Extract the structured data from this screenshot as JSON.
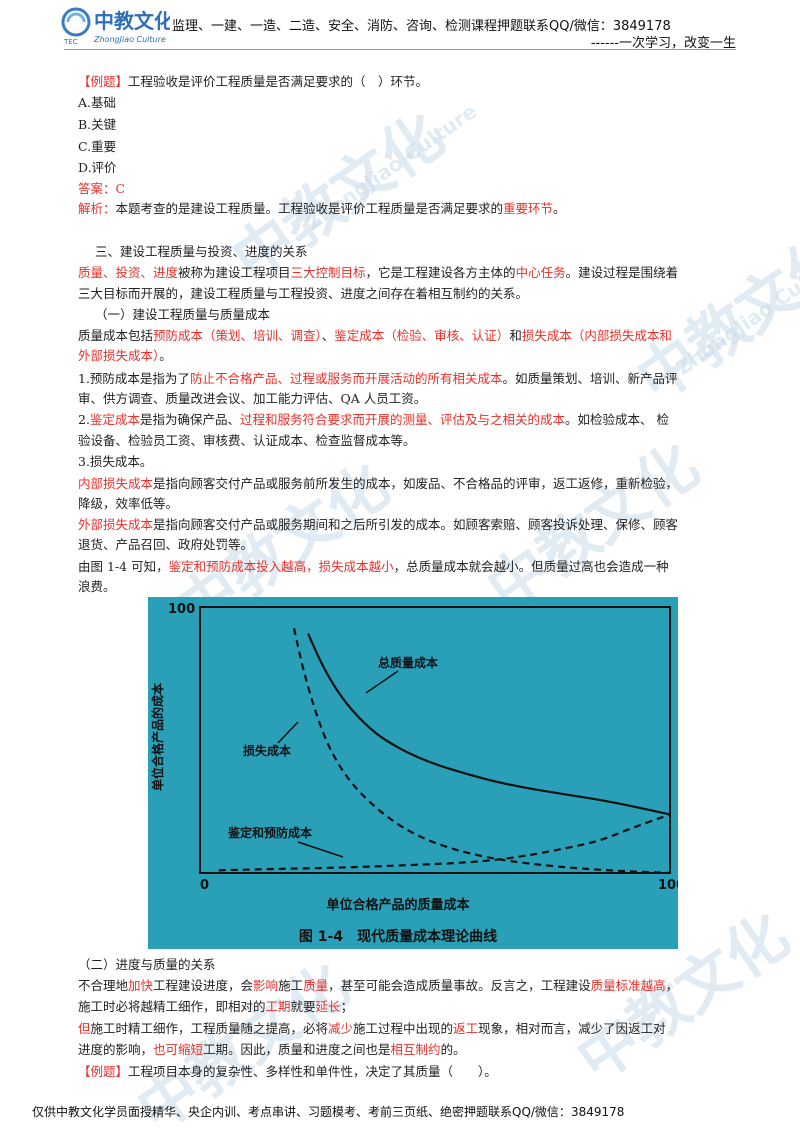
{
  "header": {
    "logo_text": "中教文化",
    "logo_sub": "ZhongJiao Culture",
    "logo_abbr": "TEC",
    "contact": "监理、一建、一造、二造、安全、消防、咨询、检测课程押题联系QQ/微信：3849178",
    "slogan": "------一次学习，改变一生"
  },
  "q1": {
    "tag": "【例题】",
    "stem": "工程验收是评价工程质量是否满足要求的（　）环节。",
    "options": [
      "A.基础",
      "B.关键",
      "C.重要",
      "D.评价"
    ],
    "answer": "答案：C",
    "analysis_label": "解析：",
    "analysis_text": "本题考查的是建设工程质量。工程验收是评价工程质量是否满足要求的",
    "analysis_red": "重要环节",
    "analysis_end": "。"
  },
  "s3": {
    "heading": "三、建设工程质量与投资、进度的关系",
    "p1_red1": "质量、投资、进度",
    "p1_t1": "被称为建设工程项目",
    "p1_red2": "三大控制目标",
    "p1_t2": "，它是工程建设各方主体的",
    "p1_red3": "中心任务",
    "p1_t3": "。建设过程是围绕着",
    "p1_line2": "三大目标而开展的，建设工程质量与工程投资、进度之间存在着相互制约的关系。",
    "sub1": "（一）建设工程质量与质量成本",
    "p2_t1": "质量成本包括",
    "p2_red1": "预防成本（策划、培训、调查）",
    "p2_t2": "、",
    "p2_red2": "鉴定成本（检验、审核、认证）",
    "p2_t3": "和",
    "p2_red3": "损失成本（内部损失成本和",
    "p2_red4": "外部损失成本）",
    "p2_end": "。",
    "i1_t1": "1.预防成本是指为了",
    "i1_red": "防止不合格产品、过程或服务而开展活动的所有相关成本",
    "i1_t2": "。如质量策划、培训、新产品评",
    "i1_line2": "审、供方调查、质量改进会议、加工能力评估、QA 人员工资。",
    "i2_t1": "2.",
    "i2_red1": "鉴定成本",
    "i2_t2": "是指为确保产品、",
    "i2_red2": "过程和服务符合要求而开展的测量、评估及与之相关的成本",
    "i2_t3": "。如检验成本、 检",
    "i2_line2": "验设备、检验员工资、审核费、认证成本、检查监督成本等。",
    "i3": "3.损失成本。",
    "in_red": "内部损失成本",
    "in_t": "是指向顾客交付产品或服务前所发生的成本，如废品、不合格品的评审，返工返修，重新检验，",
    "in_line2": "降级，效率低等。",
    "ex_red": "外部损失成本",
    "ex_t": "是指向顾客交付产品或服务期间和之后所引发的成本。如顾客索赔、顾客投诉处理、保修、顾客",
    "ex_line2": "退货、产品召回、政府处罚等。",
    "fig_t1": "由图 1-4 可知，",
    "fig_red": "鉴定和预防成本投入越高，损失成本越小",
    "fig_t2": "，总质量成本就会越小。但质量过高也会造成一种",
    "fig_line2": "浪费。"
  },
  "chart_data": {
    "type": "line",
    "title": "图 1-4　现代质量成本理论曲线",
    "xlabel": "单位合格产品的质量成本",
    "ylabel": "单位合格产品的成本",
    "xlim": [
      0,
      100
    ],
    "ylim": [
      0,
      100
    ],
    "x_ticks": [
      "0",
      "100"
    ],
    "y_ticks": [
      "100"
    ],
    "series": [
      {
        "name": "总质量成本",
        "style": "solid",
        "x": [
          23,
          26,
          30,
          35,
          40,
          48,
          57,
          66,
          76,
          87,
          100
        ],
        "y": [
          90,
          78,
          66,
          56,
          49,
          42,
          37,
          33,
          30,
          27,
          22
        ]
      },
      {
        "name": "损失成本",
        "style": "dashed",
        "x": [
          20,
          22,
          25,
          28,
          32,
          37,
          43,
          50,
          60,
          72,
          86,
          100
        ],
        "y": [
          92,
          76,
          58,
          45,
          34,
          25,
          17,
          11,
          6,
          3,
          1,
          0
        ]
      },
      {
        "name": "鉴定和预防成本",
        "style": "dashed",
        "x": [
          4,
          15,
          30,
          45,
          58,
          68,
          77,
          85,
          92,
          100
        ],
        "y": [
          1,
          1.5,
          2,
          3,
          4,
          6,
          9,
          12,
          17,
          22
        ]
      }
    ],
    "grid": false,
    "colors": {
      "background": "#2aa0b8",
      "line": "#111111"
    }
  },
  "s4": {
    "sub2": "（二）进度与质量的关系",
    "p1_t1": "不合理地",
    "p1_red1": "加快",
    "p1_t2": "工程建设进度，会",
    "p1_red2": "影响",
    "p1_t3": "施工",
    "p1_red3": "质量",
    "p1_t4": "，甚至可能会造成质量事故。反言之，工程建设",
    "p1_red4": "质量标准越高",
    "p1_end": "，",
    "p1_l2_t1": "施工时必将越精工细作，即相对的",
    "p1_l2_red1": "工期",
    "p1_l2_t2": "就要",
    "p1_l2_red2": "延长",
    "p1_l2_end": "；",
    "p2_red1": "但",
    "p2_t1": "施工时精工细作，工程质量随之提高，必将",
    "p2_red2": "减少",
    "p2_t2": "施工过程中出现的",
    "p2_red3": "返工",
    "p2_t3": "现象，相对而言，减少了因返工对",
    "p2_l2_t1": "进度的影响，",
    "p2_l2_red1": "也可缩短",
    "p2_l2_t2": "工期。因此，质量和进度之间也是",
    "p2_l2_red2": "相互制约",
    "p2_l2_end": "的。",
    "q2_tag": "【例题】",
    "q2_stem": "工程项目本身的复杂性、多样性和单件性，决定了其质量（　　）。"
  },
  "footer": {
    "text": "仅供中教文化学员面授精华、央企内训、考点串讲、习题模考、考前三页纸、绝密押题联系QQ/微信：3849178"
  },
  "watermark": {
    "text": "中教文化",
    "sub": "ZhongJiao Culture"
  }
}
